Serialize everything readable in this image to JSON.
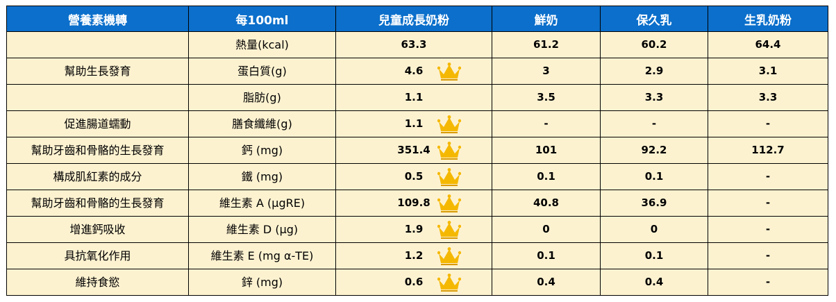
{
  "header": [
    "營養素機轉",
    "每100ml",
    "兒童成長奶粉",
    "鮮奶",
    "保久乳",
    "生乳奶粉"
  ],
  "rows": [
    {
      "function": "",
      "nutrient": "熱量(kcal)",
      "formula": "63.3",
      "crown": false,
      "fresh_milk": "61.2",
      "uht_milk": "60.2",
      "raw_milk_powder": "64.4"
    },
    {
      "function": "幫助生長發育",
      "nutrient": "蛋白質(g)",
      "formula": "4.6",
      "crown": true,
      "fresh_milk": "3",
      "uht_milk": "2.9",
      "raw_milk_powder": "3.1"
    },
    {
      "function": "",
      "nutrient": "脂肪(g)",
      "formula": "1.1",
      "crown": false,
      "fresh_milk": "3.5",
      "uht_milk": "3.3",
      "raw_milk_powder": "3.3"
    },
    {
      "function": "促進腸道蠕動",
      "nutrient": "膳食纖維(g)",
      "formula": "1.1",
      "crown": true,
      "fresh_milk": "-",
      "uht_milk": "-",
      "raw_milk_powder": "-"
    },
    {
      "function": "幫助牙齒和骨骼的生長發育",
      "nutrient": "鈣 (mg)",
      "formula": "351.4",
      "crown": true,
      "fresh_milk": "101",
      "uht_milk": "92.2",
      "raw_milk_powder": "112.7"
    },
    {
      "function": "構成肌紅素的成分",
      "nutrient": "鐵 (mg)",
      "formula": "0.5",
      "crown": true,
      "fresh_milk": "0.1",
      "uht_milk": "0.1",
      "raw_milk_powder": "-"
    },
    {
      "function": "幫助牙齒和骨骼的生長發育",
      "nutrient": "維生素 A (μgRE)",
      "formula": "109.8",
      "crown": true,
      "fresh_milk": "40.8",
      "uht_milk": "36.9",
      "raw_milk_powder": "-"
    },
    {
      "function": "增進鈣吸收",
      "nutrient": "維生素 D (μg)",
      "formula": "1.9",
      "crown": true,
      "fresh_milk": "0",
      "uht_milk": "0",
      "raw_milk_powder": "-"
    },
    {
      "function": "具抗氧化作用",
      "nutrient": "維生素 E (mg α-TE)",
      "formula": "1.2",
      "crown": true,
      "fresh_milk": "0.1",
      "uht_milk": "0.1",
      "raw_milk_powder": "-"
    },
    {
      "function": "維持食慾",
      "nutrient": "鋅 (mg)",
      "formula": "0.6",
      "crown": true,
      "fresh_milk": "0.4",
      "uht_milk": "0.4",
      "raw_milk_powder": "-"
    }
  ],
  "colors": {
    "header_bg": "#0b6fcb",
    "header_text": "#ffffff",
    "cell_bg": "#fdf2d0",
    "crown": "#f5b800"
  },
  "icons": {
    "crown": "crown-icon"
  }
}
